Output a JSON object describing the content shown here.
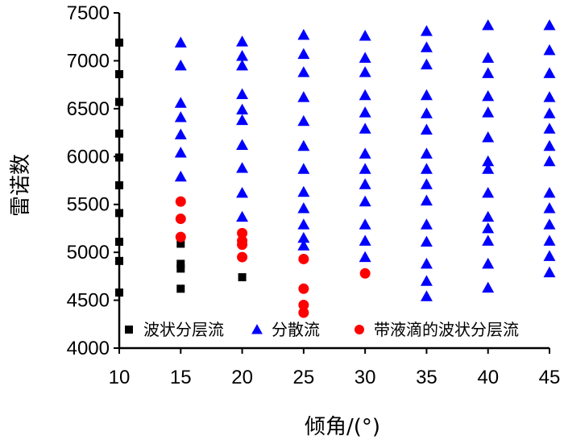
{
  "chart_data": {
    "type": "scatter",
    "xlabel": "倾角/(°)",
    "ylabel": "雷诺数",
    "xlim": [
      10,
      45
    ],
    "ylim": [
      4000,
      7500
    ],
    "xticks": [
      "10",
      "15",
      "20",
      "25",
      "30",
      "35",
      "40",
      "45"
    ],
    "yticks": [
      "4000",
      "4500",
      "5000",
      "5500",
      "6000",
      "6500",
      "7000",
      "7500"
    ],
    "grid": false,
    "legend_position": "bottom",
    "series": [
      {
        "name": "波状分层流",
        "marker": "square",
        "color": "#000000",
        "points": [
          [
            10,
            7190
          ],
          [
            10,
            6860
          ],
          [
            10,
            6570
          ],
          [
            10,
            6240
          ],
          [
            10,
            5990
          ],
          [
            10,
            5700
          ],
          [
            10,
            5410
          ],
          [
            10,
            5110
          ],
          [
            10,
            4910
          ],
          [
            10,
            4580
          ],
          [
            15,
            5090
          ],
          [
            15,
            4880
          ],
          [
            15,
            4830
          ],
          [
            15,
            4620
          ],
          [
            20,
            4740
          ]
        ]
      },
      {
        "name": "分散流",
        "marker": "triangle",
        "color": "#0000ff",
        "points": [
          [
            15,
            7190
          ],
          [
            15,
            6950
          ],
          [
            15,
            6560
          ],
          [
            15,
            6410
          ],
          [
            15,
            6230
          ],
          [
            15,
            6040
          ],
          [
            15,
            5790
          ],
          [
            20,
            7200
          ],
          [
            20,
            7050
          ],
          [
            20,
            6950
          ],
          [
            20,
            6650
          ],
          [
            20,
            6490
          ],
          [
            20,
            6380
          ],
          [
            20,
            6120
          ],
          [
            20,
            5880
          ],
          [
            20,
            5620
          ],
          [
            20,
            5370
          ],
          [
            25,
            7270
          ],
          [
            25,
            7070
          ],
          [
            25,
            6880
          ],
          [
            25,
            6620
          ],
          [
            25,
            6370
          ],
          [
            25,
            6110
          ],
          [
            25,
            5870
          ],
          [
            25,
            5630
          ],
          [
            25,
            5460
          ],
          [
            25,
            5290
          ],
          [
            25,
            5150
          ],
          [
            25,
            5070
          ],
          [
            30,
            7260
          ],
          [
            30,
            7030
          ],
          [
            30,
            6880
          ],
          [
            30,
            6640
          ],
          [
            30,
            6460
          ],
          [
            30,
            6290
          ],
          [
            30,
            6030
          ],
          [
            30,
            5870
          ],
          [
            30,
            5710
          ],
          [
            30,
            5530
          ],
          [
            30,
            5290
          ],
          [
            30,
            5120
          ],
          [
            30,
            4950
          ],
          [
            35,
            7310
          ],
          [
            35,
            7140
          ],
          [
            35,
            6960
          ],
          [
            35,
            6640
          ],
          [
            35,
            6450
          ],
          [
            35,
            6280
          ],
          [
            35,
            6030
          ],
          [
            35,
            5870
          ],
          [
            35,
            5710
          ],
          [
            35,
            5540
          ],
          [
            35,
            5290
          ],
          [
            35,
            5110
          ],
          [
            35,
            4880
          ],
          [
            35,
            4700
          ],
          [
            35,
            4540
          ],
          [
            40,
            7370
          ],
          [
            40,
            7030
          ],
          [
            40,
            6870
          ],
          [
            40,
            6630
          ],
          [
            40,
            6460
          ],
          [
            40,
            6200
          ],
          [
            40,
            5950
          ],
          [
            40,
            5870
          ],
          [
            40,
            5620
          ],
          [
            40,
            5370
          ],
          [
            40,
            5250
          ],
          [
            40,
            5120
          ],
          [
            40,
            4880
          ],
          [
            40,
            4630
          ],
          [
            45,
            7370
          ],
          [
            45,
            7110
          ],
          [
            45,
            6870
          ],
          [
            45,
            6620
          ],
          [
            45,
            6450
          ],
          [
            45,
            6290
          ],
          [
            45,
            6110
          ],
          [
            45,
            5950
          ],
          [
            45,
            5620
          ],
          [
            45,
            5460
          ],
          [
            45,
            5290
          ],
          [
            45,
            5120
          ],
          [
            45,
            4960
          ],
          [
            45,
            4790
          ]
        ]
      },
      {
        "name": "带液滴的波状分层流",
        "marker": "circle",
        "color": "#ff0000",
        "points": [
          [
            15,
            5530
          ],
          [
            15,
            5350
          ],
          [
            15,
            5160
          ],
          [
            20,
            5200
          ],
          [
            20,
            5120
          ],
          [
            20,
            5080
          ],
          [
            20,
            4950
          ],
          [
            25,
            4930
          ],
          [
            25,
            4620
          ],
          [
            25,
            4450
          ],
          [
            25,
            4370
          ],
          [
            30,
            4780
          ]
        ]
      }
    ]
  }
}
